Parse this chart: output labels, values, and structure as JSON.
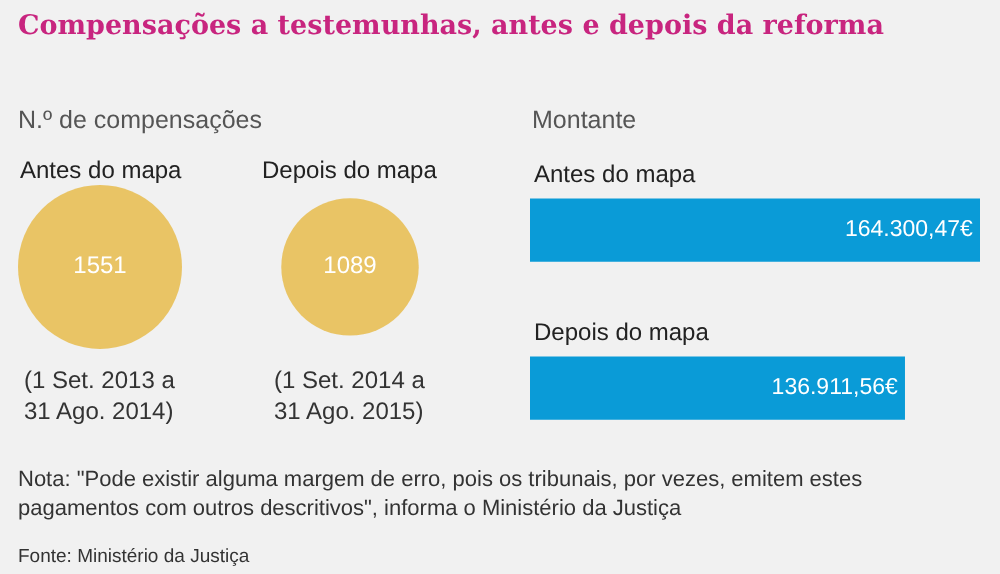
{
  "chart_data": [
    {
      "type": "other",
      "title": "Compensações a testemunhas, antes e depois da reforma",
      "subtitle": "N.º de compensações",
      "categories": [
        "Antes do mapa",
        "Depois do mapa"
      ],
      "values": [
        1551,
        1089
      ],
      "color": "#e6b12a",
      "data_labels": true,
      "annotations": [
        {
          "text": "(1 Set. 2013 a\n31 Ago. 2014)",
          "x": "Antes do mapa"
        },
        {
          "text": "(1 Set. 2014 a\n31 Ago. 2015)",
          "x": "Depois do mapa"
        }
      ]
    },
    {
      "type": "bar",
      "orientation": "horizontal",
      "subtitle": "Montante",
      "categories": [
        "Antes do mapa",
        "Depois do mapa"
      ],
      "values": [
        164300.47,
        136911.56
      ],
      "color": "#0a9bd7",
      "value_labels": [
        "164.300,47€",
        "136.911,56€"
      ],
      "annotations": [
        "Nota: \"Pode existir alguma margem de erro, pois os tribunais, por vezes, emitem estes pagamentos com outros descritivos\", informa o Ministério da Justiça",
        "Fonte: Ministério da Justiça"
      ]
    }
  ]
}
